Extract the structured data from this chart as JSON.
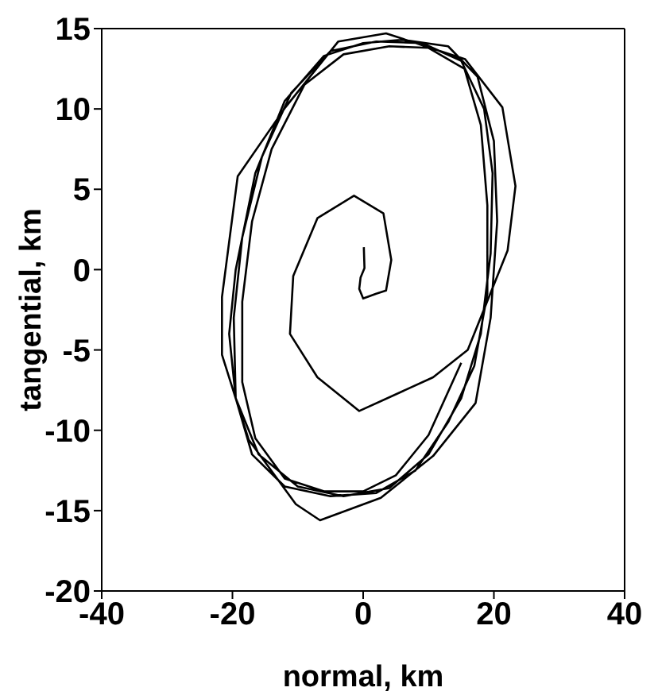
{
  "chart_data": {
    "type": "line",
    "xlabel": "normal, km",
    "ylabel": "tangential, km",
    "xlim": [
      -40,
      40
    ],
    "xticks": [
      -40,
      -20,
      0,
      20,
      40
    ],
    "ylim": [
      -20,
      15
    ],
    "yticks": [
      -20,
      -15,
      -10,
      -5,
      0,
      5,
      10,
      15
    ],
    "marker": "none",
    "line_style": "solid",
    "series": [
      {
        "color": "#000000",
        "x": [
          0.1,
          0.2,
          -0.4,
          -0.6,
          0,
          2,
          3.5,
          4.3,
          3.1,
          -1.4,
          -7,
          -10.7,
          -11.2,
          -7,
          -0.6,
          10.7,
          16,
          22.1,
          23.3,
          21.3,
          15.6,
          3.5,
          -3.8,
          -11.9,
          -19.2,
          -21.6,
          -21.6,
          -17.5,
          -10.3,
          -6.6,
          2.7,
          10.7,
          17.2,
          19.5,
          20.5,
          20,
          17.5,
          13,
          6,
          0,
          -6,
          -12,
          -16.5,
          -19.5,
          -20.5,
          -19.5,
          -16,
          -10,
          -3,
          4,
          10,
          15,
          18,
          19.5,
          19.8,
          18.5,
          15,
          9,
          2,
          -5,
          -11,
          -15.5,
          -18.5,
          -19.8,
          -19.5,
          -17,
          -12,
          -5,
          2,
          8,
          13,
          17,
          19,
          19,
          18,
          15.5,
          10,
          4,
          -3,
          -9,
          -14,
          -17,
          -18.5,
          -18.5,
          -16.5,
          -12,
          -6,
          0,
          5,
          10,
          15
        ],
        "values": [
          1.4,
          0.1,
          -0.5,
          -1.2,
          -1.8,
          -1.5,
          -1.3,
          0.6,
          3.5,
          4.6,
          3.2,
          -0.4,
          -4,
          -6.7,
          -8.8,
          -6.7,
          -5,
          1.2,
          5.2,
          10.1,
          13.1,
          14.7,
          14.2,
          10.1,
          5.8,
          -1.7,
          -5.3,
          -10.6,
          -14.6,
          -15.6,
          -14.2,
          -11.6,
          -8.3,
          -3,
          3,
          8,
          12,
          13.9,
          14.3,
          14.1,
          13.3,
          10.5,
          6,
          0,
          -4,
          -8,
          -11.5,
          -13.5,
          -14.1,
          -13.6,
          -11.5,
          -8,
          -4,
          1,
          6,
          10,
          13,
          14.1,
          14.2,
          13.6,
          11,
          7,
          2,
          -3,
          -8,
          -11.5,
          -13.5,
          -14.1,
          -13.9,
          -12.5,
          -9.5,
          -6,
          -1.5,
          4,
          9,
          12.5,
          13.8,
          13.9,
          13.4,
          11.5,
          7.5,
          3,
          -2,
          -7,
          -10.5,
          -13,
          -13.8,
          -13.8,
          -12.8,
          -10.3,
          -5.8
        ]
      }
    ]
  }
}
